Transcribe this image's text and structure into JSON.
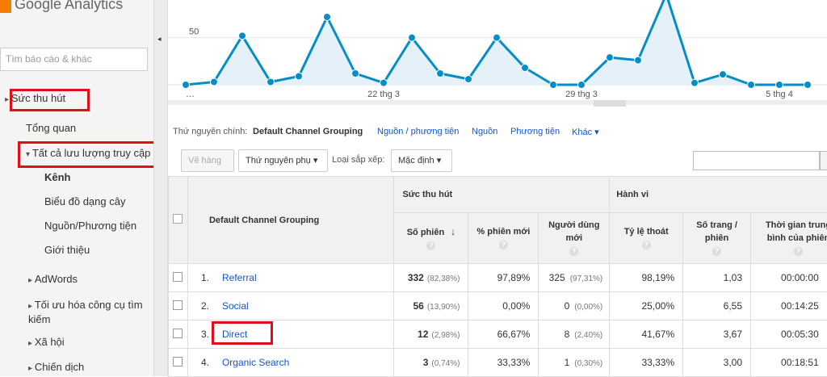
{
  "sidebar": {
    "brand": "Google Analytics",
    "search_placeholder": "Tìm báo cáo & khác",
    "items": [
      "Sức thu hút",
      "Tổng quan",
      "Tất cả lưu lượng truy cập",
      "Kênh",
      "Biểu đồ dạng cây",
      "Nguồn/Phương tiện",
      "Giới thiệu",
      "AdWords",
      "Tối ưu hóa công cụ tìm kiếm",
      "Xã hội",
      "Chiến dịch"
    ]
  },
  "chart_data": {
    "type": "line",
    "categories": [
      "…",
      null,
      null,
      null,
      null,
      null,
      null,
      "22 thg 3",
      null,
      null,
      null,
      null,
      null,
      null,
      "29 thg 3",
      null,
      null,
      null,
      null,
      null,
      null,
      "5 thg 4",
      null
    ],
    "series": [
      {
        "color": "#058dc7",
        "values": [
          0,
          3,
          52,
          3,
          9,
          72,
          12,
          2,
          50,
          12,
          6,
          50,
          18,
          0,
          0,
          29,
          26,
          96,
          2,
          11,
          0,
          0,
          0
        ]
      }
    ],
    "ylim": [
      0,
      90
    ],
    "yticks": [
      50
    ],
    "grid": true
  },
  "tabs": {
    "label": "Thứ nguyên chính:",
    "active": "Default Channel Grouping",
    "links": [
      "Nguồn / phương tiện",
      "Nguồn",
      "Phương tiện",
      "Khác"
    ]
  },
  "toolbar": {
    "plot_rows": "Vẽ hàng",
    "secondary_dimension": "Thứ nguyên phụ",
    "sort_label": "Loại sắp xếp:",
    "sort_value": "Mặc định"
  },
  "table": {
    "groups": [
      "Sức thu hút",
      "Hành vi"
    ],
    "dimension_header": "Default Channel Grouping",
    "headers": [
      "Số phiên",
      "% phiên mới",
      "Người dùng mới",
      "Tỷ lệ thoát",
      "Số trang / phiên",
      "Thời gian trung bình của phiên"
    ],
    "rows": [
      [
        "1.",
        "Referral",
        "332",
        "(82,38%)",
        "97,89%",
        "325",
        "(97,31%)",
        "98,19%",
        "1,03",
        "00:00:00"
      ],
      [
        "2.",
        "Social",
        "56",
        "(13,90%)",
        "0,00%",
        "0",
        "(0,00%)",
        "25,00%",
        "6,55",
        "00:14:25"
      ],
      [
        "3.",
        "Direct",
        "12",
        "(2,98%)",
        "66,67%",
        "8",
        "(2,40%)",
        "41,67%",
        "3,67",
        "00:05:30"
      ],
      [
        "4.",
        "Organic Search",
        "3",
        "(0,74%)",
        "33,33%",
        "1",
        "(0,30%)",
        "33,33%",
        "3,00",
        "00:18:51"
      ]
    ]
  }
}
